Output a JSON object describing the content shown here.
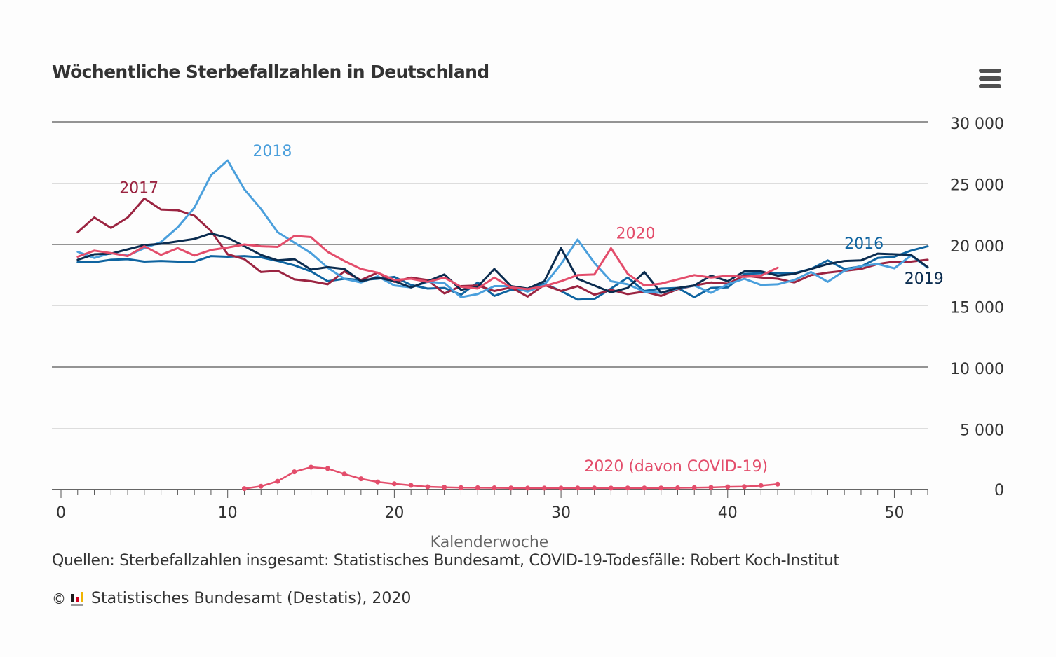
{
  "title": "Wöchentliche Sterbefallzahlen in Deutschland",
  "source": "Quellen: Sterbefallzahlen insgesamt: Statistisches Bundesamt, COVID-19-Todesfälle: Robert Koch-Institut",
  "credit": "Statistisches Bundesamt (Destatis), 2020",
  "copyright_symbol": "©",
  "icons": {
    "menu": "hamburger-menu-icon",
    "logo": "destatis-logo-icon"
  },
  "chart_data": {
    "type": "line",
    "title": "Wöchentliche Sterbefallzahlen in Deutschland",
    "xlabel": "Kalenderwoche",
    "ylabel": "",
    "xlim": [
      0,
      52
    ],
    "ylim": [
      0,
      30000
    ],
    "x_ticks": [
      0,
      10,
      20,
      30,
      40,
      50
    ],
    "y_ticks": [
      0,
      5000,
      10000,
      15000,
      20000,
      25000,
      30000
    ],
    "x_tick_labels": [
      "0",
      "10",
      "20",
      "30",
      "40",
      "50"
    ],
    "y_tick_labels": [
      "0",
      "5 000",
      "10 000",
      "15 000",
      "20 000",
      "25 000",
      "30 000"
    ],
    "grid": true,
    "y_axis_side": "right",
    "series": [
      {
        "name": "2016",
        "color": "#0f64a0",
        "label_week": 47,
        "label_value": 19650,
        "x": [
          1,
          2,
          3,
          4,
          5,
          6,
          7,
          8,
          9,
          10,
          11,
          12,
          13,
          14,
          15,
          16,
          17,
          18,
          19,
          20,
          21,
          22,
          23,
          24,
          25,
          26,
          27,
          28,
          29,
          30,
          31,
          32,
          33,
          34,
          35,
          36,
          37,
          38,
          39,
          40,
          41,
          42,
          43,
          44,
          45,
          46,
          47,
          48,
          49,
          50,
          51,
          52
        ],
        "values": [
          18550,
          18550,
          18750,
          18800,
          18600,
          18650,
          18600,
          18600,
          19050,
          19000,
          19050,
          18950,
          18650,
          18300,
          17800,
          17000,
          17200,
          17100,
          17200,
          17350,
          16700,
          16400,
          16450,
          15900,
          16900,
          15800,
          16300,
          16300,
          16800,
          16200,
          15500,
          15550,
          16400,
          17300,
          16200,
          16400,
          16450,
          15700,
          16450,
          16500,
          17600,
          17650,
          17650,
          17650,
          18000,
          18700,
          18000,
          18200,
          18900,
          19000,
          19500,
          19850
        ],
        "dashed": false,
        "markers": false
      },
      {
        "name": "2017",
        "color": "#9b2441",
        "label_week": 3.5,
        "label_value": 24200,
        "x": [
          1,
          2,
          3,
          4,
          5,
          6,
          7,
          8,
          9,
          10,
          11,
          12,
          13,
          14,
          15,
          16,
          17,
          18,
          19,
          20,
          21,
          22,
          23,
          24,
          25,
          26,
          27,
          28,
          29,
          30,
          31,
          32,
          33,
          34,
          35,
          36,
          37,
          38,
          39,
          40,
          41,
          42,
          43,
          44,
          45,
          46,
          47,
          48,
          49,
          50,
          51,
          52
        ],
        "values": [
          21000,
          22200,
          21350,
          22200,
          23750,
          22850,
          22800,
          22350,
          21100,
          19200,
          18800,
          17750,
          17850,
          17150,
          17000,
          16750,
          17800,
          17100,
          17700,
          16950,
          17300,
          17100,
          16000,
          16600,
          16650,
          16200,
          16500,
          15750,
          16700,
          16200,
          16600,
          15900,
          16300,
          15950,
          16150,
          15800,
          16350,
          16650,
          16900,
          16800,
          17450,
          17300,
          17200,
          16900,
          17500,
          17700,
          17850,
          18000,
          18400,
          18600,
          18600,
          18750
        ],
        "dashed": false,
        "markers": false
      },
      {
        "name": "2018",
        "color": "#4a9fdc",
        "label_week": 11.5,
        "label_value": 27200,
        "x": [
          1,
          2,
          3,
          4,
          5,
          6,
          7,
          8,
          9,
          10,
          11,
          12,
          13,
          14,
          15,
          16,
          17,
          18,
          19,
          20,
          21,
          22,
          23,
          24,
          25,
          26,
          27,
          28,
          29,
          30,
          31,
          32,
          33,
          34,
          35,
          36,
          37,
          38,
          39,
          40,
          41,
          42,
          43,
          44,
          45,
          46,
          47,
          48,
          49,
          50,
          51,
          52
        ],
        "values": [
          19400,
          18900,
          19300,
          19100,
          19700,
          20200,
          21400,
          23000,
          25650,
          26850,
          24500,
          22900,
          21000,
          20150,
          19300,
          18100,
          17200,
          16900,
          17400,
          16650,
          16500,
          16950,
          16850,
          15700,
          15950,
          16600,
          16600,
          16150,
          16700,
          18400,
          20400,
          18500,
          17000,
          16750,
          16150,
          16050,
          16400,
          16650,
          16050,
          16750,
          17200,
          16700,
          16750,
          17100,
          17750,
          16950,
          17850,
          18250,
          18400,
          18050,
          19100,
          18100
        ],
        "dashed": false,
        "markers": false
      },
      {
        "name": "2019",
        "color": "#0b2c4f",
        "label_week": 50.6,
        "label_value": 16800,
        "x": [
          1,
          2,
          3,
          4,
          5,
          6,
          7,
          8,
          9,
          10,
          11,
          12,
          13,
          14,
          15,
          16,
          17,
          18,
          19,
          20,
          21,
          22,
          23,
          24,
          25,
          26,
          27,
          28,
          29,
          30,
          31,
          32,
          33,
          34,
          35,
          36,
          37,
          38,
          39,
          40,
          41,
          42,
          43,
          44,
          45,
          46,
          47,
          48,
          49,
          50,
          51,
          52
        ],
        "values": [
          18750,
          19200,
          19250,
          19600,
          19950,
          20050,
          20250,
          20450,
          20900,
          20550,
          19850,
          19150,
          18700,
          18800,
          17950,
          18150,
          18000,
          17000,
          17300,
          17000,
          16500,
          17000,
          17550,
          16300,
          16550,
          18000,
          16600,
          16400,
          17000,
          19700,
          17200,
          16650,
          16100,
          16450,
          17750,
          16050,
          16450,
          16650,
          17450,
          17000,
          17800,
          17800,
          17450,
          17600,
          18000,
          18400,
          18650,
          18700,
          19250,
          19200,
          19150,
          18150
        ],
        "dashed": false,
        "markers": false
      },
      {
        "name": "2020",
        "color": "#e34d6b",
        "label_week": 33.3,
        "label_value": 20500,
        "x": [
          1,
          2,
          3,
          4,
          5,
          6,
          7,
          8,
          9,
          10,
          11,
          12,
          13,
          14,
          15,
          16,
          17,
          18,
          19,
          20,
          21,
          22,
          23,
          24,
          25,
          26,
          27,
          28,
          29,
          30,
          31,
          32,
          33,
          34,
          35,
          36,
          37,
          38,
          39,
          40,
          41,
          42,
          43
        ],
        "values": [
          19000,
          19500,
          19300,
          19050,
          19850,
          19150,
          19700,
          19100,
          19550,
          19750,
          20000,
          19850,
          19800,
          20700,
          20600,
          19400,
          18650,
          18000,
          17700,
          17100,
          17200,
          16950,
          17300,
          16550,
          16400,
          17300,
          16500,
          16350,
          16600,
          17000,
          17500,
          17550,
          19700,
          17600,
          16650,
          16800,
          17150,
          17500,
          17300,
          17450,
          17350,
          17450,
          18100
        ],
        "dashed": false,
        "markers": false
      },
      {
        "name": "2020 (davon COVID-19)",
        "color": "#e34d6b",
        "label_week": 31.4,
        "label_value": 1500,
        "x": [
          11,
          12,
          13,
          14,
          15,
          16,
          17,
          18,
          19,
          20,
          21,
          22,
          23,
          24,
          25,
          26,
          27,
          28,
          29,
          30,
          31,
          32,
          33,
          34,
          35,
          36,
          37,
          38,
          39,
          40,
          41,
          42,
          43
        ],
        "values": [
          80,
          270,
          680,
          1450,
          1830,
          1720,
          1270,
          880,
          620,
          470,
          340,
          230,
          190,
          160,
          150,
          140,
          130,
          120,
          120,
          120,
          130,
          130,
          120,
          130,
          130,
          130,
          140,
          160,
          180,
          220,
          240,
          320,
          440
        ],
        "dashed": false,
        "markers": true
      }
    ]
  }
}
